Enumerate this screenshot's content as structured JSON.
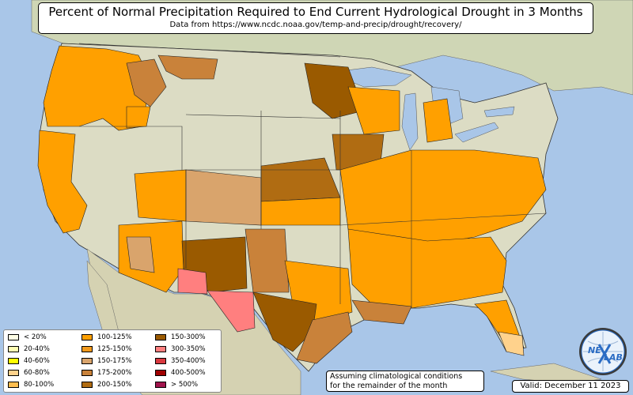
{
  "title": "Percent of Normal Precipitation Required to End Current Hydrological Drought in 3 Months",
  "subtitle": "Data from https://www.ncdc.noaa.gov/temp-and-precip/drought/recovery/",
  "legend": [
    {
      "label": "< 20%",
      "color": "#ffffe6"
    },
    {
      "label": "20-40%",
      "color": "#ffffb4"
    },
    {
      "label": "40-60%",
      "color": "#ffff00"
    },
    {
      "label": "60-80%",
      "color": "#ffd28c"
    },
    {
      "label": "80-100%",
      "color": "#ffbe50"
    },
    {
      "label": "100-125%",
      "color": "#ffa000"
    },
    {
      "label": "125-150%",
      "color": "#f29a1c"
    },
    {
      "label": "150-175%",
      "color": "#d9a46c"
    },
    {
      "label": "175-200%",
      "color": "#c9823a"
    },
    {
      "label": "200-150%",
      "color": "#b06c12"
    },
    {
      "label": "150-300%",
      "color": "#9a5a00"
    },
    {
      "label": "300-350%",
      "color": "#ff7f7f"
    },
    {
      "label": "350-400%",
      "color": "#d9393f"
    },
    {
      "label": "400-500%",
      "color": "#a00000"
    },
    {
      "label": "> 500%",
      "color": "#a0144c"
    }
  ],
  "note": {
    "line1": "Assuming climatological conditions",
    "line2": "for the remainder of the month"
  },
  "valid": "Valid: December 11 2023",
  "logo": {
    "text_left": "NE",
    "text_right": "LAB",
    "ring_color": "#ffffff",
    "accent": "#2b6cc4"
  },
  "colors": {
    "ocean": "#a9c6e8",
    "land": "#d9dcc0",
    "land_alt": "#c8cfae"
  }
}
